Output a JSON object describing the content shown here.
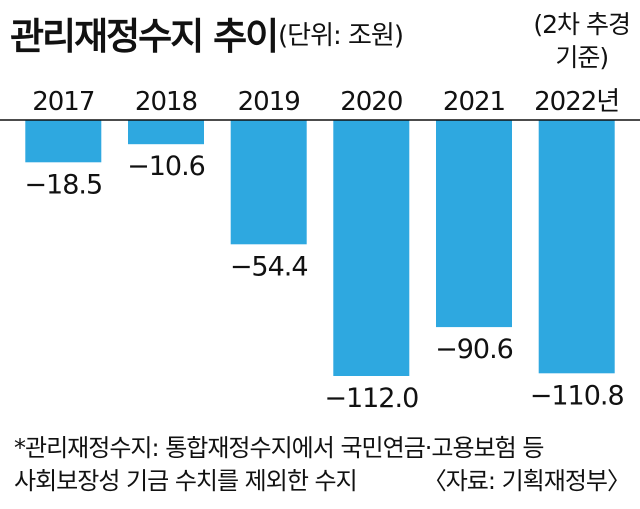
{
  "title": "관리재정수지 추이",
  "unit": "(단위: 조원)",
  "basis": [
    "(2차 추경",
    "기준)"
  ],
  "chart_data": {
    "type": "bar",
    "categories": [
      "2017",
      "2018",
      "2019",
      "2020",
      "2021",
      "2022년"
    ],
    "values": [
      -18.5,
      -10.6,
      -54.4,
      -112.0,
      -90.6,
      -110.8
    ],
    "value_labels": [
      "−18.5",
      "−10.6",
      "−54.4",
      "−112.0",
      "−90.6",
      "−110.8"
    ],
    "ylim": [
      -112,
      0
    ],
    "grid": false,
    "bar_color": "#2ea8e0"
  },
  "notes": {
    "line1": "*관리재정수지: 통합재정수지에서 국민연금·고용보험 등",
    "line2": "사회보장성 기금 수치를 제외한 수지",
    "source": "〈자료: 기획재정부〉"
  }
}
